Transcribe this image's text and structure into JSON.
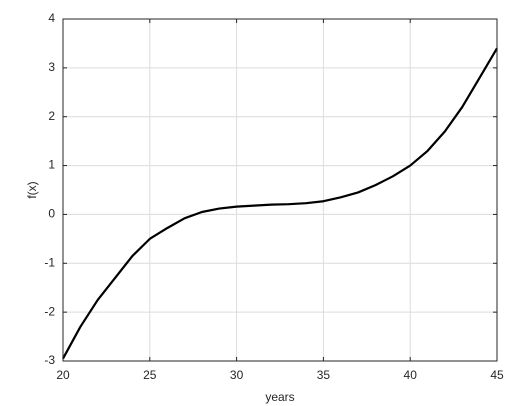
{
  "chart_data": {
    "type": "line",
    "xlabel": "years",
    "ylabel": "f(x)",
    "x": [
      20,
      21,
      22,
      23,
      24,
      25,
      26,
      27,
      28,
      29,
      30,
      31,
      32,
      33,
      34,
      35,
      36,
      37,
      38,
      39,
      40,
      41,
      42,
      43,
      44,
      45
    ],
    "series": [
      {
        "color": "#000000",
        "values": [
          -2.95,
          -2.3,
          -1.75,
          -1.3,
          -0.85,
          -0.5,
          -0.28,
          -0.08,
          0.05,
          0.12,
          0.16,
          0.18,
          0.2,
          0.21,
          0.23,
          0.27,
          0.35,
          0.45,
          0.6,
          0.78,
          1.0,
          1.3,
          1.7,
          2.2,
          2.8,
          3.4
        ]
      }
    ],
    "xlim": [
      20,
      45
    ],
    "xticks": [
      20,
      25,
      30,
      35,
      40,
      45
    ],
    "ylim": [
      -3,
      4
    ],
    "yticks": [
      -3,
      -2,
      -1,
      0,
      1,
      2,
      3,
      4
    ],
    "grid": true
  }
}
